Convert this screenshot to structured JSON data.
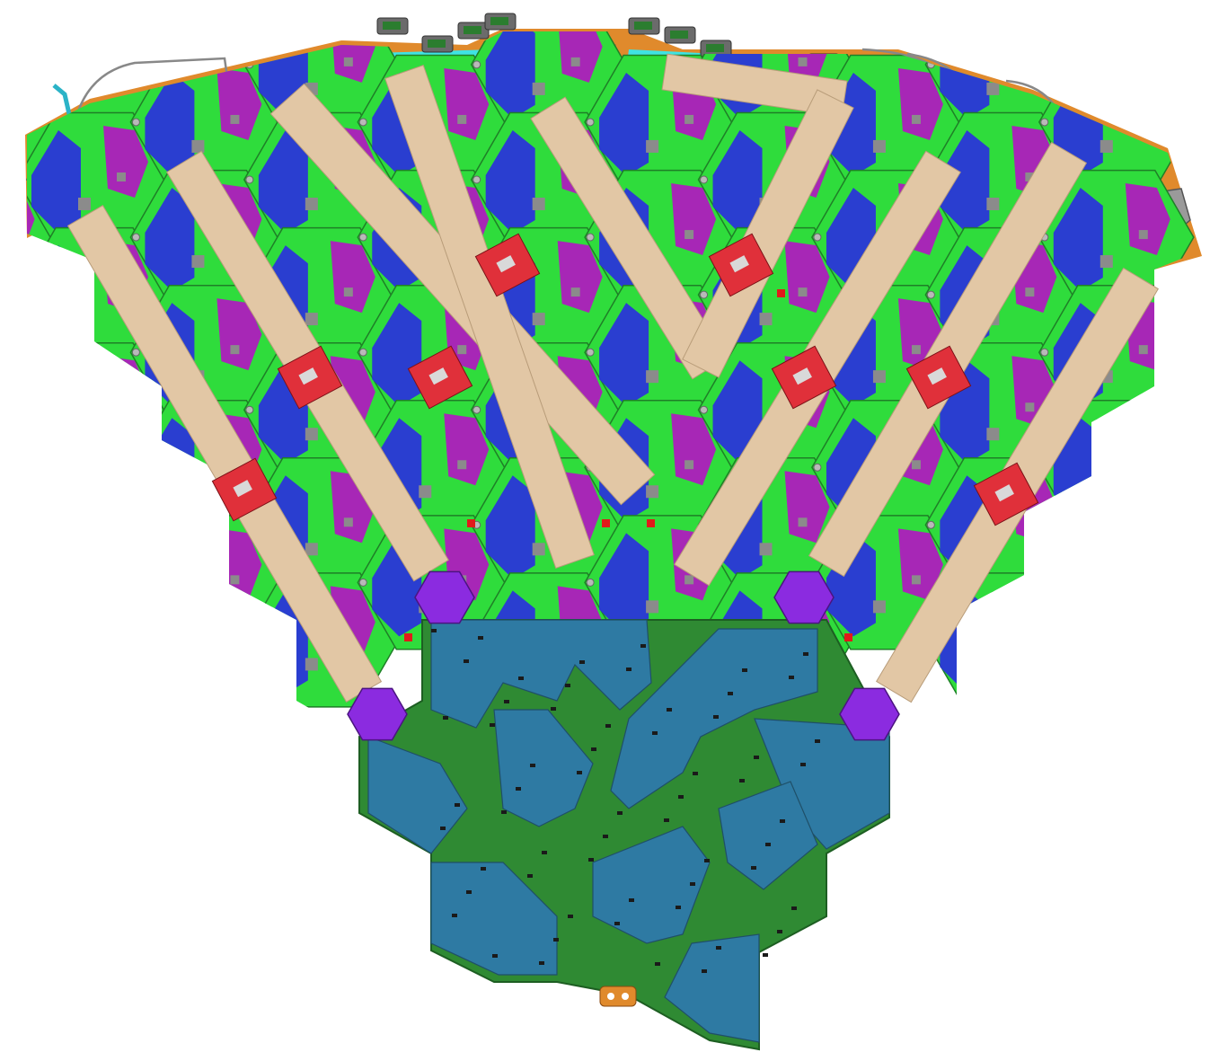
{
  "colors": {
    "background": "#ffffff",
    "hex_module": "#2fdc3c",
    "hex_edge": "#1f7f27",
    "blue_sensor": "#2a35d8",
    "magenta_sensor": "#a727b6",
    "cyan_plate": "#3fe3e3",
    "orange_frame": "#e08a2c",
    "tan_strip": "#e2c7a5",
    "red_board": "#e0303a",
    "purple_connector": "#8b2be0",
    "pcb_green": "#2f8a33",
    "teal_region": "#2e7aa3",
    "gray_component": "#8b8b8b"
  },
  "icons": [
    "cable-connector-icon",
    "mounting-bracket-icon",
    "screw-hole-icon"
  ]
}
